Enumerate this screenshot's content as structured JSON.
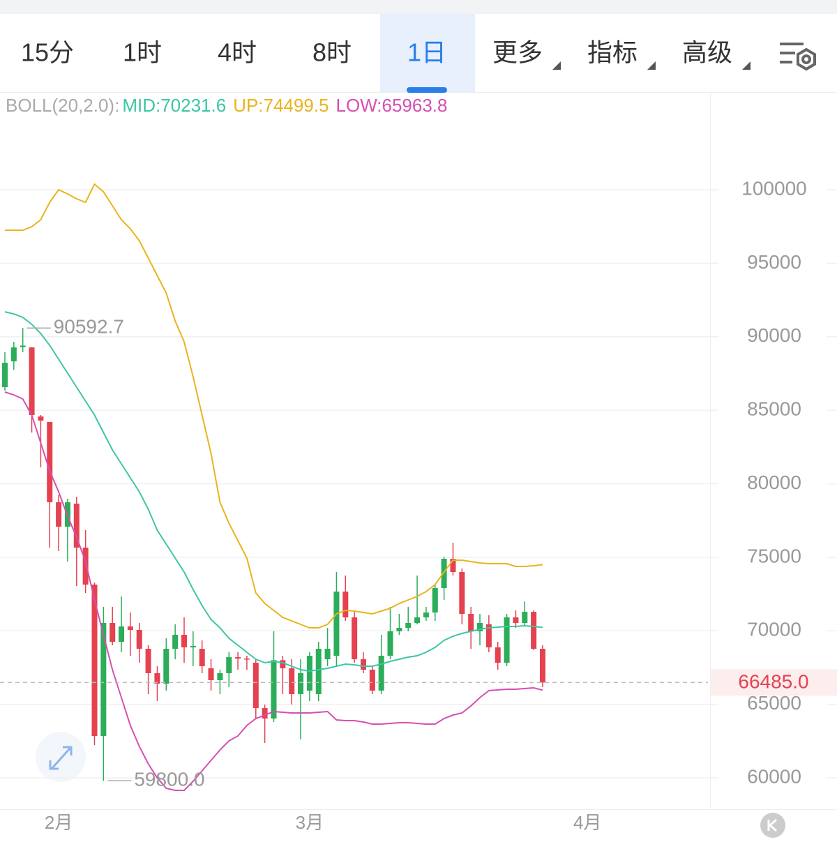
{
  "toolbar": {
    "tabs": [
      "15分",
      "1时",
      "4时",
      "8时",
      "1日"
    ],
    "menus": [
      "更多",
      "指标",
      "高级"
    ],
    "active": 4
  },
  "chart_data": {
    "type": "candlestick",
    "x": [
      0,
      1,
      2,
      3,
      4,
      5,
      6,
      7,
      8,
      9,
      10,
      11,
      12,
      13,
      14,
      15,
      16,
      17,
      18,
      19,
      20,
      21,
      22,
      23,
      24,
      25,
      26,
      27,
      28,
      29,
      30,
      31,
      32,
      33,
      34,
      35,
      36,
      37,
      38,
      39,
      40,
      41,
      42,
      43,
      44,
      45,
      46,
      47,
      48,
      49,
      50,
      51,
      52,
      53,
      54,
      55,
      56,
      57,
      58,
      59,
      60
    ],
    "open": [
      86572,
      88327,
      89300,
      89276,
      84580,
      84200,
      78744,
      77083,
      78650,
      75657,
      73143,
      62847,
      70534,
      69253,
      70297,
      70060,
      68778,
      67118,
      66406,
      68778,
      69727,
      68873,
      68778,
      67450,
      66643,
      67118,
      68208,
      68113,
      67829,
      64744,
      64032,
      68000,
      67450,
      65693,
      65930,
      65693,
      68066,
      68303,
      72669,
      70913,
      68066,
      67355,
      65930,
      68303,
      69964,
      70200,
      70534,
      70913,
      71246,
      72906,
      74899,
      73997,
      71151,
      69964,
      70439,
      68873,
      67829,
      70913,
      70534,
      71290,
      68778
    ],
    "high": [
      88944,
      89656,
      90592.7,
      89300,
      84674,
      84200,
      79218,
      78981,
      79123,
      76844,
      73286,
      71626,
      71626,
      72336,
      71246,
      70534,
      69015,
      67592,
      69490,
      70439,
      70913,
      69964,
      69348,
      68066,
      67355,
      68541,
      68541,
      68303,
      68066,
      64981,
      69964,
      68303,
      68066,
      68066,
      68541,
      69253,
      70200,
      73997,
      73760,
      71388,
      68541,
      67592,
      69727,
      71626,
      71151,
      71626,
      73760,
      71626,
      73143,
      75045,
      75990,
      74234,
      71626,
      71151,
      71056,
      69253,
      71151,
      71388,
      72000,
      71388,
      69015
    ],
    "low": [
      86334,
      87758,
      88944,
      83488,
      81115,
      75657,
      75420,
      74709,
      73048,
      72574,
      62230,
      59800,
      69015,
      68541,
      68303,
      67829,
      65693,
      65219,
      65930,
      68066,
      67829,
      67592,
      67118,
      65930,
      65693,
      66169,
      67355,
      67355,
      64032,
      62373,
      63795,
      65693,
      64981,
      62610,
      65219,
      65219,
      67592,
      67592,
      70676,
      67829,
      67118,
      65693,
      65693,
      68066,
      69727,
      69964,
      70439,
      70676,
      70676,
      72100,
      73760,
      70439,
      68778,
      69015,
      68541,
      67355,
      67592,
      70200,
      70297,
      68683,
      66169
    ],
    "close": [
      88232,
      89276,
      89400,
      84674,
      84300,
      78744,
      77083,
      78744,
      75657,
      73143,
      62847,
      70534,
      69253,
      70297,
      70060,
      68778,
      67118,
      66406,
      68778,
      69727,
      68873,
      68968,
      67592,
      66643,
      67118,
      68208,
      68113,
      68066,
      64744,
      64032,
      68000,
      67450,
      65693,
      67118,
      68303,
      68778,
      68778,
      72669,
      70913,
      68066,
      67355,
      65930,
      68303,
      69964,
      70200,
      70534,
      70913,
      71246,
      72906,
      74899,
      73997,
      71151,
      69964,
      70534,
      68873,
      67829,
      70913,
      70534,
      71290,
      68778,
      66485
    ],
    "up_color": "#2bad5a",
    "down_color": "#e5414f",
    "boll": {
      "label": "BOLL(20,2.0):",
      "series": [
        {
          "name": "MID",
          "legend": "MID:70231.6",
          "color": "#3cc6a6",
          "values": [
            91696,
            91554,
            91317,
            90842,
            90225,
            89418,
            88470,
            87521,
            86572,
            85623,
            84674,
            83487,
            82301,
            81352,
            80403,
            79454,
            78268,
            76844,
            75895,
            74946,
            73997,
            72811,
            71720,
            70771,
            70203,
            69489,
            69015,
            68541,
            68066,
            67829,
            67924,
            67829,
            67592,
            67355,
            67260,
            67355,
            67450,
            67592,
            67734,
            67687,
            67592,
            67592,
            67734,
            67924,
            68066,
            68208,
            68303,
            68541,
            68873,
            69348,
            69632,
            69822,
            69964,
            70107,
            70203,
            70250,
            70297,
            70297,
            70345,
            70297,
            70231.6
          ]
        },
        {
          "name": "UP",
          "legend": "UP:74499.5",
          "color": "#e9b41c",
          "values": [
            97248,
            97248,
            97248,
            97485,
            97960,
            99146,
            100000,
            99715,
            99383,
            99146,
            100380,
            99858,
            98909,
            97960,
            97343,
            96536,
            95350,
            94164,
            92977,
            91079,
            89656,
            87283,
            84674,
            82064,
            78743,
            77319,
            76133,
            74947,
            72574,
            71862,
            71388,
            70913,
            70676,
            70439,
            70202,
            70202,
            70439,
            71151,
            71388,
            71340,
            71246,
            71151,
            71340,
            71530,
            71862,
            72100,
            72337,
            72669,
            73143,
            73997,
            74804,
            74804,
            74709,
            74614,
            74567,
            74567,
            74567,
            74377,
            74377,
            74425,
            74499.5
          ]
        },
        {
          "name": "LOW",
          "legend": "LOW:65963.8",
          "color": "#d64fb2",
          "values": [
            86239,
            86050,
            85765,
            84674,
            82776,
            80878,
            79454,
            77793,
            76370,
            74709,
            72100,
            69727,
            67355,
            65457,
            63559,
            62136,
            60949,
            60000,
            59288,
            59146,
            59146,
            59763,
            60475,
            61186,
            61898,
            62515,
            62847,
            63559,
            64033,
            64270,
            64507,
            64460,
            64413,
            64413,
            64413,
            64460,
            64507,
            63938,
            63891,
            63891,
            63796,
            63654,
            63654,
            63701,
            63749,
            63749,
            63701,
            63654,
            63654,
            64033,
            64270,
            64413,
            64887,
            65457,
            65931,
            65978,
            66026,
            66026,
            66073,
            66120,
            65963.8
          ]
        }
      ]
    },
    "high_label": "90592.7",
    "low_label": "59800.0",
    "last_price": {
      "value": 66485,
      "label": "66485.0"
    },
    "xlim": [
      -0.545,
      78.68
    ],
    "xticks": [
      {
        "value": 6,
        "label": "2月"
      },
      {
        "value": 34,
        "label": "3月"
      },
      {
        "value": 65,
        "label": "4月"
      }
    ],
    "ylim": [
      57865,
      106643
    ],
    "yticks": [
      60000,
      65000,
      70000,
      75000,
      80000,
      85000,
      90000,
      95000,
      100000
    ],
    "grid": true
  }
}
